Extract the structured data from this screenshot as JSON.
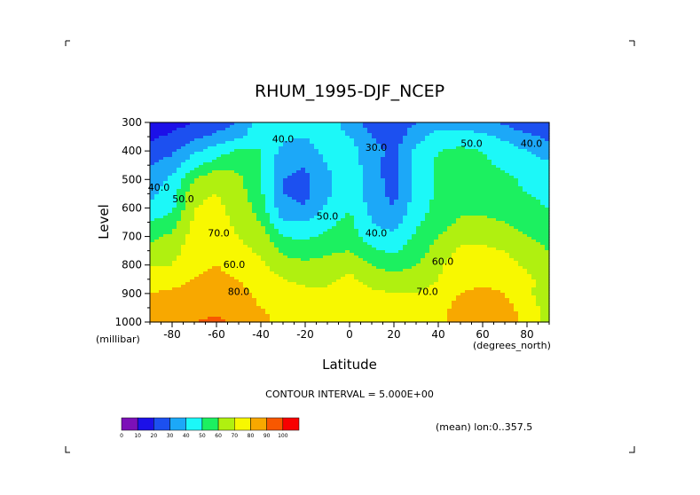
{
  "chart_data": {
    "type": "heatmap",
    "title": "RHUM_1995-DJF_NCEP",
    "xlabel": "Latitude",
    "ylabel": "Level",
    "x_unit": "(degrees_north)",
    "y_unit": "(millibar)",
    "xlim": [
      -90,
      90
    ],
    "ylim": [
      1000,
      300
    ],
    "x_ticks": [
      -80,
      -60,
      -40,
      -20,
      0,
      20,
      40,
      60,
      80
    ],
    "x_tick_labels": [
      "-80",
      "-60",
      "-40",
      "-20",
      "0",
      "20",
      "40",
      "60",
      "80"
    ],
    "y_ticks": [
      300,
      400,
      500,
      600,
      700,
      800,
      900,
      1000
    ],
    "contour_interval_text": "CONTOUR INTERVAL = 5.000E+00",
    "subtitle_right": "(mean) lon:0..357.5",
    "colorbar": {
      "ticks": [
        0,
        10,
        20,
        30,
        40,
        50,
        60,
        70,
        80,
        90,
        100
      ],
      "colors": [
        "#7c10b8",
        "#1c10e8",
        "#1c50f0",
        "#1ca8f8",
        "#1cf8f8",
        "#1cf060",
        "#b0f010",
        "#f8f800",
        "#f8a800",
        "#f85800",
        "#f80000"
      ]
    },
    "contour_labels": [
      {
        "text": "40.0",
        "lat": -30,
        "lev": 370
      },
      {
        "text": "30.0",
        "lat": 12,
        "lev": 400
      },
      {
        "text": "50.0",
        "lat": 55,
        "lev": 385
      },
      {
        "text": "40.0",
        "lat": 82,
        "lev": 385
      },
      {
        "text": "50.0",
        "lat": -75,
        "lev": 580
      },
      {
        "text": "40.0",
        "lat": -86,
        "lev": 540
      },
      {
        "text": "50.0",
        "lat": -10,
        "lev": 640
      },
      {
        "text": "40.0",
        "lat": 12,
        "lev": 700
      },
      {
        "text": "70.0",
        "lat": -59,
        "lev": 700
      },
      {
        "text": "60.0",
        "lat": -52,
        "lev": 810
      },
      {
        "text": "60.0",
        "lat": 42,
        "lev": 800
      },
      {
        "text": "80.0",
        "lat": -50,
        "lev": 905
      },
      {
        "text": "70.0",
        "lat": 35,
        "lev": 905
      }
    ],
    "grid": false,
    "levels": [
      300,
      350,
      400,
      450,
      500,
      550,
      600,
      650,
      700,
      750,
      800,
      850,
      900,
      950,
      1000
    ],
    "lats": [
      -90,
      -80,
      -70,
      -60,
      -50,
      -40,
      -30,
      -20,
      -10,
      0,
      10,
      20,
      30,
      40,
      50,
      60,
      70,
      80,
      90
    ],
    "values": [
      [
        12,
        16,
        20,
        25,
        30,
        45,
        43,
        42,
        45,
        35,
        25,
        24,
        30,
        33,
        35,
        33,
        28,
        22,
        20
      ],
      [
        18,
        22,
        28,
        32,
        38,
        48,
        42,
        40,
        46,
        40,
        30,
        25,
        36,
        45,
        45,
        42,
        38,
        32,
        28
      ],
      [
        25,
        28,
        38,
        45,
        52,
        50,
        37,
        35,
        44,
        45,
        34,
        27,
        42,
        50,
        52,
        50,
        45,
        40,
        35
      ],
      [
        30,
        35,
        48,
        55,
        58,
        52,
        32,
        30,
        40,
        46,
        34,
        25,
        42,
        52,
        54,
        52,
        48,
        45,
        42
      ],
      [
        34,
        42,
        60,
        68,
        62,
        50,
        30,
        28,
        38,
        47,
        35,
        25,
        43,
        52,
        55,
        54,
        52,
        48,
        46
      ],
      [
        38,
        45,
        68,
        70,
        65,
        52,
        30,
        28,
        38,
        48,
        35,
        27,
        44,
        52,
        56,
        56,
        54,
        50,
        48
      ],
      [
        42,
        48,
        70,
        72,
        67,
        55,
        33,
        30,
        42,
        50,
        37,
        30,
        45,
        53,
        58,
        58,
        56,
        52,
        50
      ],
      [
        50,
        55,
        72,
        73,
        68,
        60,
        40,
        40,
        48,
        52,
        40,
        35,
        48,
        55,
        62,
        62,
        60,
        55,
        53
      ],
      [
        58,
        62,
        74,
        75,
        70,
        65,
        50,
        48,
        52,
        55,
        45,
        42,
        52,
        60,
        67,
        67,
        64,
        60,
        57
      ],
      [
        62,
        66,
        76,
        77,
        73,
        68,
        58,
        55,
        58,
        60,
        52,
        48,
        55,
        64,
        72,
        72,
        70,
        64,
        60
      ],
      [
        70,
        70,
        78,
        80,
        77,
        72,
        64,
        62,
        64,
        67,
        60,
        56,
        60,
        68,
        75,
        76,
        74,
        68,
        64
      ],
      [
        75,
        76,
        80,
        82,
        80,
        76,
        70,
        68,
        68,
        72,
        66,
        63,
        65,
        70,
        77,
        78,
        77,
        72,
        66
      ],
      [
        80,
        82,
        84,
        85,
        82,
        78,
        74,
        72,
        72,
        75,
        72,
        70,
        70,
        74,
        80,
        82,
        80,
        74,
        60
      ],
      [
        85,
        86,
        87,
        87,
        84,
        80,
        77,
        75,
        75,
        78,
        75,
        74,
        74,
        77,
        83,
        84,
        82,
        77,
        64
      ],
      [
        88,
        88,
        90,
        92,
        88,
        82,
        78,
        76,
        76,
        79,
        76,
        75,
        75,
        78,
        85,
        86,
        84,
        78,
        66
      ]
    ]
  }
}
